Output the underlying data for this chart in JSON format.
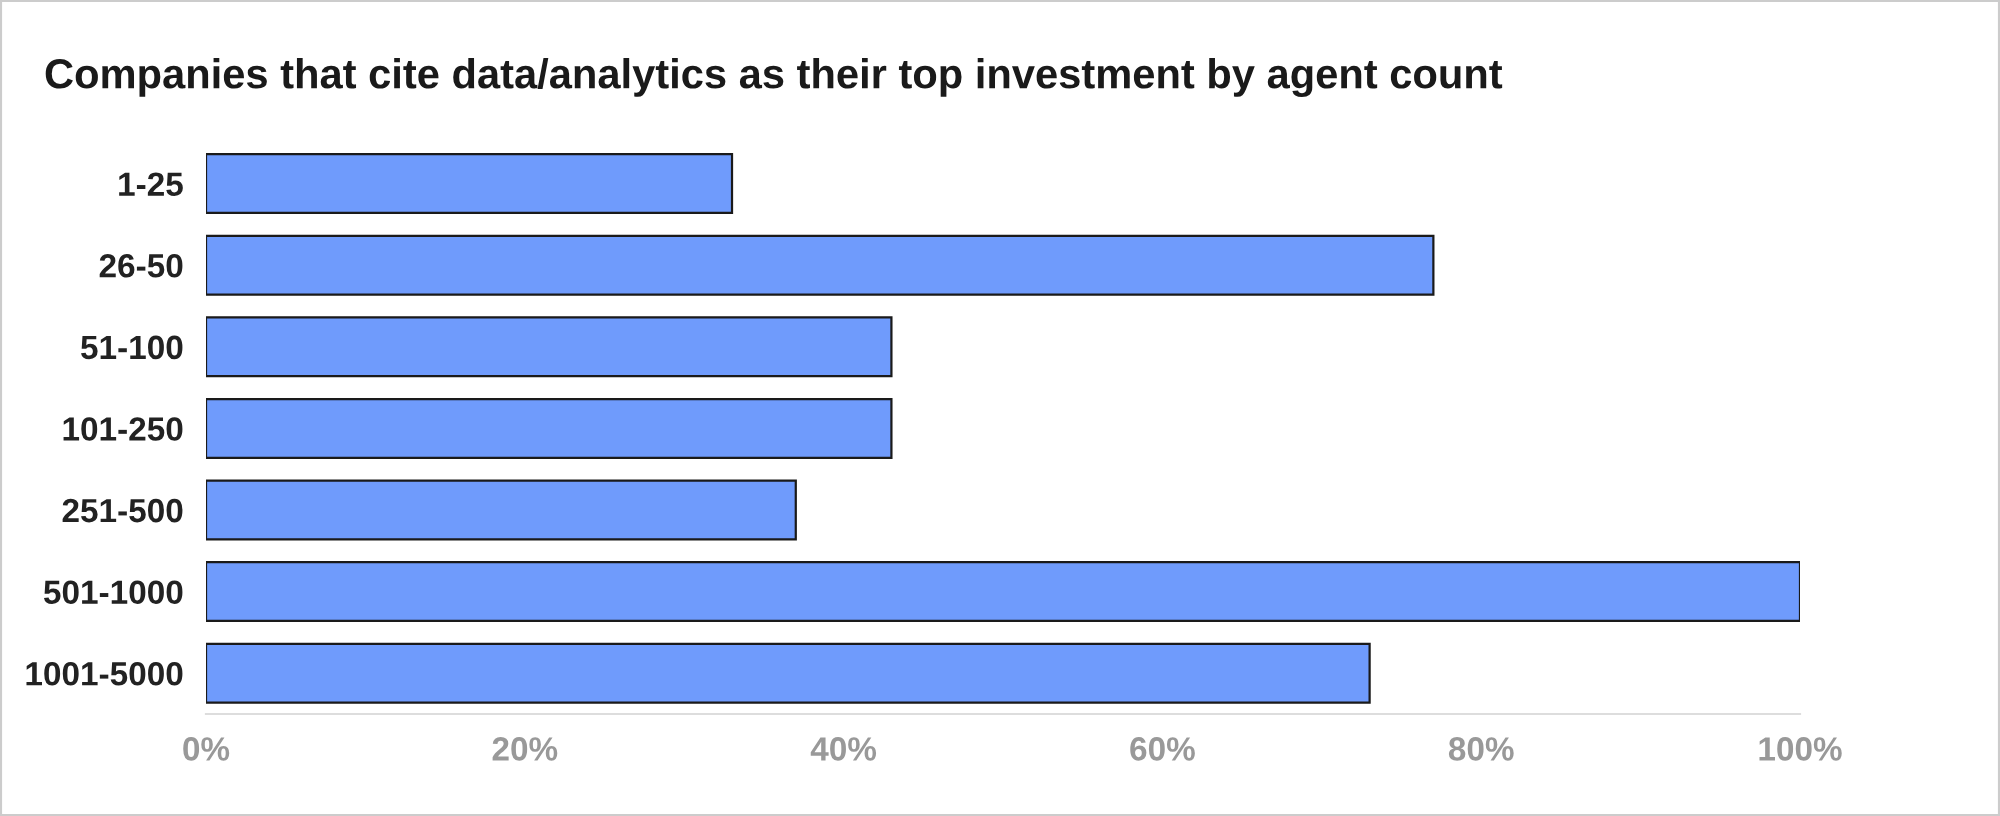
{
  "chart_data": {
    "type": "bar",
    "orientation": "horizontal",
    "title": "Companies that cite data/analytics as their top investment by agent count",
    "categories": [
      "1-25",
      "26-50",
      "51-100",
      "101-250",
      "251-500",
      "501-1000",
      "1001-5000"
    ],
    "series": [
      {
        "color": "#6f9bfc",
        "values": [
          33,
          77,
          43,
          43,
          37,
          100,
          73
        ]
      }
    ],
    "xlim": [
      0,
      100
    ],
    "xticks": [
      {
        "value": 0,
        "label": "0%"
      },
      {
        "value": 20,
        "label": "20%"
      },
      {
        "value": 40,
        "label": "40%"
      },
      {
        "value": 60,
        "label": "60%"
      },
      {
        "value": 80,
        "label": "80%"
      },
      {
        "value": 100,
        "label": "100%"
      }
    ],
    "grid": false,
    "legend": false
  }
}
